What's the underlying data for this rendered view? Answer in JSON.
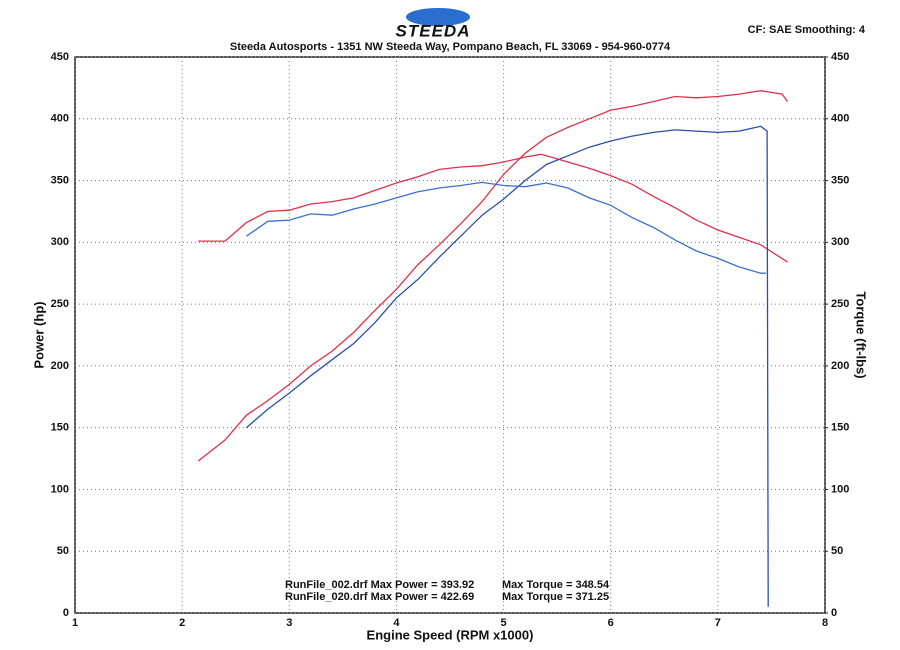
{
  "chart_data": {
    "type": "line",
    "logo": "STEEDA",
    "title": "Steeda Autosports - 1351 NW Steeda Way, Pompano Beach, FL 33069 - 954-960-0774",
    "settings_text": "CF: SAE  Smoothing: 4",
    "xlabel": "Engine Speed (RPM x1000)",
    "ylabel": "Power (hp)",
    "y2label": "Torque (ft-lbs)",
    "xlim": [
      1,
      8
    ],
    "xticks": [
      1,
      2,
      3,
      4,
      5,
      6,
      7,
      8
    ],
    "ylim": [
      0,
      450
    ],
    "yticks": [
      0,
      50,
      100,
      150,
      200,
      250,
      300,
      350,
      400,
      450
    ],
    "y2lim": [
      0,
      450
    ],
    "y2ticks": [
      0,
      50,
      100,
      150,
      200,
      250,
      300,
      350,
      400,
      450
    ],
    "grid": true,
    "run_summary": [
      [
        "RunFile_002.drf Max Power = 393.92",
        "Max Torque = 348.54"
      ],
      [
        "RunFile_020.drf Max Power = 422.69",
        "Max Torque = 371.25"
      ]
    ],
    "series": [
      {
        "color": "#e0304a",
        "x": [
          2.15,
          2.4,
          2.6,
          2.8,
          3.0,
          3.2,
          3.4,
          3.6,
          3.8,
          4.0,
          4.2,
          4.4,
          4.6,
          4.8,
          5.0,
          5.2,
          5.4,
          5.6,
          5.8,
          6.0,
          6.2,
          6.4,
          6.6,
          6.8,
          7.0,
          7.2,
          7.4,
          7.6,
          7.65
        ],
        "values": [
          123,
          140,
          160,
          172,
          185,
          200,
          212,
          227,
          245,
          262,
          282,
          298,
          315,
          333,
          355,
          372,
          385,
          393,
          400,
          407,
          410,
          414,
          418,
          417,
          418,
          420,
          422.69,
          420,
          414
        ]
      },
      {
        "color": "#e0304a",
        "axis": "y2",
        "x": [
          2.15,
          2.4,
          2.6,
          2.8,
          3.0,
          3.2,
          3.4,
          3.6,
          3.8,
          4.0,
          4.2,
          4.4,
          4.6,
          4.8,
          5.0,
          5.2,
          5.35,
          5.6,
          5.8,
          6.0,
          6.2,
          6.4,
          6.6,
          6.8,
          7.0,
          7.2,
          7.4,
          7.65
        ],
        "values": [
          301,
          301,
          316,
          325,
          326,
          331,
          333,
          336,
          342,
          348,
          353,
          359,
          361,
          362,
          365,
          369,
          371.25,
          365,
          360,
          354,
          347,
          337,
          328,
          318,
          310,
          304,
          298,
          284
        ]
      },
      {
        "color": "#2a4fa8",
        "x": [
          2.6,
          2.8,
          3.0,
          3.2,
          3.4,
          3.6,
          3.8,
          4.0,
          4.2,
          4.4,
          4.6,
          4.8,
          5.0,
          5.2,
          5.4,
          5.6,
          5.8,
          6.0,
          6.2,
          6.4,
          6.6,
          6.8,
          7.0,
          7.2,
          7.4,
          7.46,
          7.47
        ],
        "values": [
          150,
          165,
          178,
          192,
          205,
          218,
          235,
          255,
          270,
          288,
          305,
          322,
          335,
          350,
          363,
          370,
          377,
          382,
          386,
          389,
          391,
          390,
          389,
          390,
          393.92,
          390,
          5
        ]
      },
      {
        "color": "#3a6fd0",
        "axis": "y2",
        "x": [
          2.6,
          2.8,
          3.0,
          3.2,
          3.4,
          3.6,
          3.8,
          4.0,
          4.2,
          4.4,
          4.6,
          4.8,
          5.0,
          5.2,
          5.4,
          5.6,
          5.8,
          6.0,
          6.2,
          6.4,
          6.6,
          6.8,
          7.0,
          7.2,
          7.4,
          7.45
        ],
        "values": [
          305,
          317,
          318,
          323,
          322,
          327,
          331,
          336,
          341,
          344,
          346,
          348.54,
          346,
          345,
          348,
          344,
          336,
          330,
          320,
          312,
          302,
          293,
          287,
          280,
          275,
          275
        ]
      }
    ]
  }
}
